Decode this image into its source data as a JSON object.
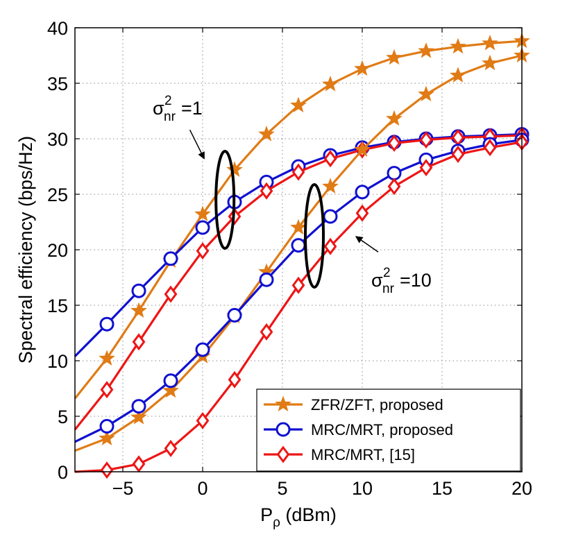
{
  "chart_data": {
    "type": "line",
    "title": "",
    "xlabel": "P",
    "xlabel_sub": "ρ",
    "xlabel_unit": " (dBm)",
    "ylabel": "Spectral efficiency (bps/Hz)",
    "xlim": [
      -8,
      20
    ],
    "ylim": [
      0,
      40
    ],
    "xticks": [
      -5,
      0,
      5,
      10,
      15,
      20
    ],
    "xtick_labels": [
      "−5",
      "0",
      "5",
      "10",
      "15",
      "20"
    ],
    "yticks": [
      0,
      5,
      10,
      15,
      20,
      25,
      30,
      35,
      40
    ],
    "ytick_labels": [
      "0",
      "5",
      "10",
      "15",
      "20",
      "25",
      "30",
      "35",
      "40"
    ],
    "grid": true,
    "legend_position": "bottom-right",
    "series": [
      {
        "name": "ZFR/ZFT, proposed",
        "group": "σ²nr=1",
        "color": "#e07b15",
        "marker": "star",
        "x": [
          -8,
          -6,
          -4,
          -2,
          0,
          2,
          4,
          6,
          8,
          10,
          12,
          14,
          16,
          18,
          20
        ],
        "y": [
          6.6,
          10.2,
          14.5,
          19.0,
          23.2,
          27.2,
          30.4,
          33.0,
          34.9,
          36.3,
          37.3,
          37.9,
          38.3,
          38.6,
          38.8
        ]
      },
      {
        "name": "MRC/MRT, proposed",
        "group": "σ²nr=1",
        "color": "#1010d0",
        "marker": "circle",
        "x": [
          -8,
          -6,
          -4,
          -2,
          0,
          2,
          4,
          6,
          8,
          10,
          12,
          14,
          16,
          18,
          20
        ],
        "y": [
          10.4,
          13.3,
          16.3,
          19.2,
          22.0,
          24.3,
          26.1,
          27.5,
          28.5,
          29.2,
          29.7,
          30.0,
          30.2,
          30.3,
          30.4
        ]
      },
      {
        "name": "MRC/MRT, [15]",
        "group": "σ²nr=1",
        "color": "#ee1515",
        "marker": "diamond",
        "x": [
          -8,
          -6,
          -4,
          -2,
          0,
          2,
          4,
          6,
          8,
          10,
          12,
          14,
          16,
          18,
          20
        ],
        "y": [
          3.8,
          7.4,
          11.7,
          16.0,
          19.9,
          23.0,
          25.3,
          27.0,
          28.2,
          29.0,
          29.6,
          29.9,
          30.1,
          30.2,
          30.3
        ]
      },
      {
        "name": "ZFR/ZFT, proposed",
        "group": "σ²nr=10",
        "color": "#e07b15",
        "marker": "star",
        "x": [
          -8,
          -6,
          -4,
          -2,
          0,
          2,
          4,
          6,
          8,
          10,
          12,
          14,
          16,
          18,
          20
        ],
        "y": [
          1.9,
          3.0,
          4.9,
          7.3,
          10.4,
          14.0,
          18.0,
          22.0,
          25.7,
          29.0,
          31.8,
          34.0,
          35.7,
          36.8,
          37.5
        ]
      },
      {
        "name": "MRC/MRT, proposed",
        "group": "σ²nr=10",
        "color": "#1010d0",
        "marker": "circle",
        "x": [
          -8,
          -6,
          -4,
          -2,
          0,
          2,
          4,
          6,
          8,
          10,
          12,
          14,
          16,
          18,
          20
        ],
        "y": [
          2.7,
          4.1,
          5.9,
          8.2,
          11.0,
          14.1,
          17.3,
          20.4,
          23.0,
          25.2,
          26.9,
          28.1,
          28.9,
          29.5,
          29.9
        ]
      },
      {
        "name": "MRC/MRT, [15]",
        "group": "σ²nr=10",
        "color": "#ee1515",
        "marker": "diamond",
        "x": [
          -8,
          -6,
          -4,
          -2,
          0,
          2,
          4,
          6,
          8,
          10,
          12,
          14,
          16,
          18,
          20
        ],
        "y": [
          0.0,
          0.15,
          0.7,
          2.1,
          4.6,
          8.3,
          12.6,
          16.8,
          20.3,
          23.3,
          25.7,
          27.4,
          28.6,
          29.2,
          29.7
        ]
      }
    ],
    "legend": [
      {
        "label": "ZFR/ZFT, proposed",
        "color": "#e07b15",
        "marker": "star"
      },
      {
        "label": "MRC/MRT, proposed",
        "color": "#1010d0",
        "marker": "circle"
      },
      {
        "label": "MRC/MRT, [15]",
        "color": "#ee1515",
        "marker": "diamond"
      }
    ],
    "annotations": [
      {
        "base": "σ",
        "sup": "2",
        "sub": "nr",
        "rest": "=1",
        "target_group": "σ²nr=1"
      },
      {
        "base": "σ",
        "sup": "2",
        "sub": "nr",
        "rest": "=10",
        "target_group": "σ²nr=10"
      }
    ]
  }
}
